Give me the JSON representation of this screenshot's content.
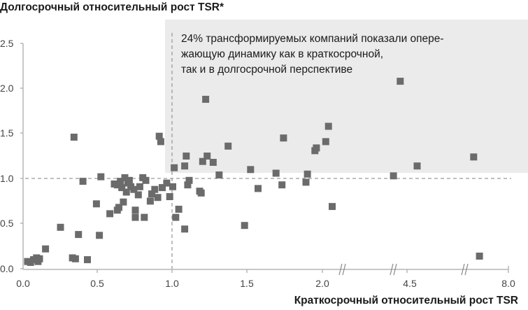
{
  "chart_data": {
    "type": "scatter",
    "title": "",
    "ylabel": "Долгосрочный относительный рост TSR*",
    "xlabel": "Краткосрочный относительный рост TSR",
    "annotation": [
      "24% трансформируемых компаний показали опере-",
      "жающую динамику как в краткосрочной,",
      "так и в долгосрочной перспективе"
    ],
    "x_ticks": [
      "0.0",
      "0.5",
      "1.0",
      "1.5",
      "2.0",
      "4.5",
      "8.0"
    ],
    "y_ticks": [
      "0.0",
      "0.5",
      "1.0",
      "1.5",
      "2.0",
      "2.5"
    ],
    "xlim": [
      0,
      8.0
    ],
    "ylim": [
      0,
      2.5
    ],
    "x_axis_breaks": [
      2.15,
      4.4,
      6.5
    ],
    "reference_lines": {
      "x": 1.0,
      "y": 1.0
    },
    "highlight_region": {
      "x_from": 0.95,
      "y_from": 1.05,
      "label": "upper-right quadrant"
    },
    "marker_color": "#6b6b6b",
    "region_color": "#ebebeb",
    "points": [
      {
        "x": 0.03,
        "y": 0.08
      },
      {
        "x": 0.05,
        "y": 0.07
      },
      {
        "x": 0.07,
        "y": 0.1
      },
      {
        "x": 0.09,
        "y": 0.12
      },
      {
        "x": 0.1,
        "y": 0.08
      },
      {
        "x": 0.11,
        "y": 0.11
      },
      {
        "x": 0.15,
        "y": 0.22
      },
      {
        "x": 0.25,
        "y": 0.46
      },
      {
        "x": 0.33,
        "y": 0.12
      },
      {
        "x": 0.34,
        "y": 1.46
      },
      {
        "x": 0.35,
        "y": 0.11
      },
      {
        "x": 0.37,
        "y": 0.38
      },
      {
        "x": 0.4,
        "y": 0.97
      },
      {
        "x": 0.43,
        "y": 0.1
      },
      {
        "x": 0.49,
        "y": 0.72
      },
      {
        "x": 0.51,
        "y": 0.37
      },
      {
        "x": 0.52,
        "y": 1.02
      },
      {
        "x": 0.58,
        "y": 0.61
      },
      {
        "x": 0.61,
        "y": 0.94
      },
      {
        "x": 0.63,
        "y": 0.65
      },
      {
        "x": 0.63,
        "y": 0.93
      },
      {
        "x": 0.64,
        "y": 0.68
      },
      {
        "x": 0.65,
        "y": 0.97
      },
      {
        "x": 0.66,
        "y": 0.9
      },
      {
        "x": 0.67,
        "y": 0.74
      },
      {
        "x": 0.68,
        "y": 1.01
      },
      {
        "x": 0.69,
        "y": 0.85
      },
      {
        "x": 0.7,
        "y": 0.95
      },
      {
        "x": 0.71,
        "y": 0.98
      },
      {
        "x": 0.72,
        "y": 0.91
      },
      {
        "x": 0.74,
        "y": 0.88
      },
      {
        "x": 0.75,
        "y": 0.57
      },
      {
        "x": 0.75,
        "y": 0.65
      },
      {
        "x": 0.77,
        "y": 0.82
      },
      {
        "x": 0.78,
        "y": 0.91
      },
      {
        "x": 0.8,
        "y": 1.01
      },
      {
        "x": 0.81,
        "y": 0.57
      },
      {
        "x": 0.82,
        "y": 0.98
      },
      {
        "x": 0.85,
        "y": 0.75
      },
      {
        "x": 0.86,
        "y": 0.83
      },
      {
        "x": 0.88,
        "y": 0.88
      },
      {
        "x": 0.9,
        "y": 0.79
      },
      {
        "x": 0.91,
        "y": 1.47
      },
      {
        "x": 0.92,
        "y": 1.41
      },
      {
        "x": 0.93,
        "y": 0.9
      },
      {
        "x": 0.96,
        "y": 0.95
      },
      {
        "x": 0.98,
        "y": 0.8
      },
      {
        "x": 1.0,
        "y": 0.91
      },
      {
        "x": 1.01,
        "y": 1.12
      },
      {
        "x": 1.02,
        "y": 0.57
      },
      {
        "x": 1.04,
        "y": 0.66
      },
      {
        "x": 1.08,
        "y": 0.44
      },
      {
        "x": 1.08,
        "y": 1.14
      },
      {
        "x": 1.09,
        "y": 1.25
      },
      {
        "x": 1.1,
        "y": 0.93
      },
      {
        "x": 1.11,
        "y": 0.98
      },
      {
        "x": 1.18,
        "y": 0.86
      },
      {
        "x": 1.19,
        "y": 0.84
      },
      {
        "x": 1.2,
        "y": 1.19
      },
      {
        "x": 1.22,
        "y": 1.88
      },
      {
        "x": 1.23,
        "y": 1.25
      },
      {
        "x": 1.27,
        "y": 1.18
      },
      {
        "x": 1.31,
        "y": 1.04
      },
      {
        "x": 1.37,
        "y": 1.36
      },
      {
        "x": 1.48,
        "y": 0.48
      },
      {
        "x": 1.52,
        "y": 1.1
      },
      {
        "x": 1.57,
        "y": 0.89
      },
      {
        "x": 1.69,
        "y": 1.06
      },
      {
        "x": 1.73,
        "y": 0.93
      },
      {
        "x": 1.74,
        "y": 1.45
      },
      {
        "x": 1.89,
        "y": 0.96
      },
      {
        "x": 1.9,
        "y": 1.05
      },
      {
        "x": 1.95,
        "y": 1.31
      },
      {
        "x": 1.96,
        "y": 1.34
      },
      {
        "x": 2.1,
        "y": 1.41
      },
      {
        "x": 2.18,
        "y": 1.58
      },
      {
        "x": 2.29,
        "y": 0.69
      },
      {
        "x": 4.1,
        "y": 1.03
      },
      {
        "x": 4.3,
        "y": 2.08
      },
      {
        "x": 4.85,
        "y": 1.14
      },
      {
        "x": 6.8,
        "y": 1.24
      },
      {
        "x": 7.0,
        "y": 0.14
      }
    ]
  }
}
